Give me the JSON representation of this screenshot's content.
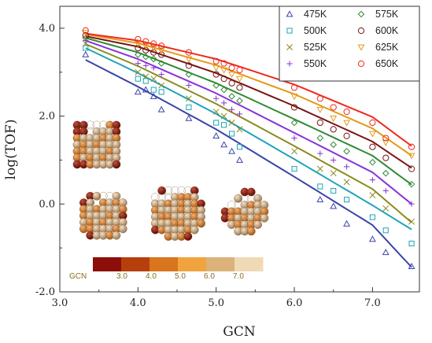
{
  "chart_data": {
    "type": "scatter",
    "xlabel": "GCN",
    "ylabel": "log(TOF)",
    "xlim": [
      3.0,
      7.6
    ],
    "ylim": [
      -2.0,
      4.5
    ],
    "xticks": [
      "3.0",
      "4.0",
      "5.0",
      "6.0",
      "7.0"
    ],
    "yticks": [
      "-2.0",
      "0.0",
      "2.0",
      "4.0"
    ],
    "grid": false,
    "legend_position": "top-right",
    "series": [
      {
        "name": "475K",
        "marker": "triangle",
        "color": "#3a44a8",
        "points": [
          [
            3.33,
            3.4
          ],
          [
            4.0,
            2.55
          ],
          [
            4.1,
            2.6
          ],
          [
            4.2,
            2.45
          ],
          [
            4.3,
            2.15
          ],
          [
            4.65,
            1.95
          ],
          [
            5.0,
            1.55
          ],
          [
            5.1,
            1.35
          ],
          [
            5.2,
            1.2
          ],
          [
            5.3,
            1.0
          ],
          [
            6.33,
            0.1
          ],
          [
            6.5,
            -0.05
          ],
          [
            6.67,
            -0.45
          ],
          [
            7.0,
            -0.8
          ],
          [
            7.17,
            -1.1
          ],
          [
            7.5,
            -1.42
          ]
        ],
        "line": [
          [
            3.33,
            3.28
          ],
          [
            4.0,
            2.67
          ],
          [
            5.0,
            1.7
          ],
          [
            6.0,
            0.62
          ],
          [
            7.0,
            -0.48
          ],
          [
            7.5,
            -1.44
          ]
        ]
      },
      {
        "name": "500K",
        "marker": "square",
        "color": "#1fa3b8",
        "points": [
          [
            3.33,
            3.55
          ],
          [
            4.0,
            2.85
          ],
          [
            4.1,
            2.8
          ],
          [
            4.2,
            2.6
          ],
          [
            4.3,
            2.55
          ],
          [
            4.65,
            2.2
          ],
          [
            5.0,
            1.85
          ],
          [
            5.1,
            1.8
          ],
          [
            5.2,
            1.6
          ],
          [
            5.3,
            1.3
          ],
          [
            6.0,
            0.8
          ],
          [
            6.33,
            0.4
          ],
          [
            6.5,
            0.3
          ],
          [
            6.67,
            0.1
          ],
          [
            7.0,
            -0.3
          ],
          [
            7.17,
            -0.6
          ],
          [
            7.5,
            -0.9
          ]
        ],
        "line": [
          [
            3.33,
            3.55
          ],
          [
            4.0,
            2.98
          ],
          [
            5.0,
            2.05
          ],
          [
            6.0,
            1.02
          ],
          [
            7.0,
            -0.03
          ],
          [
            7.5,
            -0.58
          ]
        ]
      },
      {
        "name": "525K",
        "marker": "x",
        "color": "#8a8a1e",
        "points": [
          [
            3.33,
            3.65
          ],
          [
            4.0,
            3.0
          ],
          [
            4.1,
            2.9
          ],
          [
            4.2,
            2.85
          ],
          [
            4.3,
            2.7
          ],
          [
            4.65,
            2.4
          ],
          [
            5.0,
            2.1
          ],
          [
            5.1,
            2.0
          ],
          [
            5.2,
            1.85
          ],
          [
            5.3,
            1.7
          ],
          [
            6.0,
            1.2
          ],
          [
            6.33,
            0.8
          ],
          [
            6.5,
            0.7
          ],
          [
            6.67,
            0.5
          ],
          [
            7.0,
            0.2
          ],
          [
            7.17,
            -0.1
          ],
          [
            7.5,
            -0.4
          ]
        ],
        "line": [
          [
            3.33,
            3.64
          ],
          [
            4.0,
            3.14
          ],
          [
            5.0,
            2.28
          ],
          [
            6.0,
            1.32
          ],
          [
            7.0,
            0.34
          ],
          [
            7.5,
            -0.42
          ]
        ]
      },
      {
        "name": "550K",
        "marker": "plus",
        "color": "#8a32d8",
        "points": [
          [
            3.33,
            3.72
          ],
          [
            4.0,
            3.2
          ],
          [
            4.1,
            3.15
          ],
          [
            4.2,
            3.1
          ],
          [
            4.3,
            2.95
          ],
          [
            4.65,
            2.7
          ],
          [
            5.0,
            2.4
          ],
          [
            5.1,
            2.3
          ],
          [
            5.2,
            2.15
          ],
          [
            5.3,
            2.05
          ],
          [
            6.0,
            1.5
          ],
          [
            6.33,
            1.15
          ],
          [
            6.5,
            1.0
          ],
          [
            6.67,
            0.85
          ],
          [
            7.0,
            0.55
          ],
          [
            7.17,
            0.3
          ],
          [
            7.5,
            0.0
          ]
        ],
        "line": [
          [
            3.33,
            3.72
          ],
          [
            4.0,
            3.3
          ],
          [
            5.0,
            2.52
          ],
          [
            6.0,
            1.62
          ],
          [
            7.0,
            0.72
          ],
          [
            7.5,
            0.0
          ]
        ]
      },
      {
        "name": "575K",
        "marker": "diamond",
        "color": "#2e8a32",
        "points": [
          [
            3.33,
            3.78
          ],
          [
            4.0,
            3.4
          ],
          [
            4.1,
            3.35
          ],
          [
            4.2,
            3.3
          ],
          [
            4.3,
            3.2
          ],
          [
            4.65,
            2.95
          ],
          [
            5.0,
            2.7
          ],
          [
            5.1,
            2.6
          ],
          [
            5.2,
            2.45
          ],
          [
            5.3,
            2.35
          ],
          [
            6.0,
            1.85
          ],
          [
            6.33,
            1.5
          ],
          [
            6.5,
            1.35
          ],
          [
            6.67,
            1.2
          ],
          [
            7.0,
            0.95
          ],
          [
            7.17,
            0.7
          ],
          [
            7.5,
            0.45
          ]
        ],
        "line": [
          [
            3.33,
            3.78
          ],
          [
            4.0,
            3.45
          ],
          [
            5.0,
            2.75
          ],
          [
            6.0,
            1.93
          ],
          [
            7.0,
            1.1
          ],
          [
            7.5,
            0.44
          ]
        ]
      },
      {
        "name": "600K",
        "marker": "circle",
        "color": "#7a1414",
        "points": [
          [
            3.33,
            3.84
          ],
          [
            4.0,
            3.55
          ],
          [
            4.1,
            3.5
          ],
          [
            4.2,
            3.45
          ],
          [
            4.3,
            3.4
          ],
          [
            4.65,
            3.15
          ],
          [
            5.0,
            2.95
          ],
          [
            5.1,
            2.85
          ],
          [
            5.2,
            2.75
          ],
          [
            5.3,
            2.65
          ],
          [
            6.0,
            2.2
          ],
          [
            6.33,
            1.85
          ],
          [
            6.5,
            1.7
          ],
          [
            6.67,
            1.55
          ],
          [
            7.0,
            1.3
          ],
          [
            7.17,
            1.05
          ],
          [
            7.5,
            0.8
          ]
        ],
        "line": [
          [
            3.33,
            3.82
          ],
          [
            4.0,
            3.58
          ],
          [
            5.0,
            2.98
          ],
          [
            6.0,
            2.23
          ],
          [
            7.0,
            1.42
          ],
          [
            7.5,
            0.82
          ]
        ]
      },
      {
        "name": "625K",
        "marker": "triangle-down",
        "color": "#e39a1a",
        "points": [
          [
            3.33,
            3.9
          ],
          [
            4.0,
            3.65
          ],
          [
            4.1,
            3.6
          ],
          [
            4.2,
            3.55
          ],
          [
            4.3,
            3.5
          ],
          [
            4.65,
            3.3
          ],
          [
            5.0,
            3.1
          ],
          [
            5.1,
            3.05
          ],
          [
            5.2,
            2.95
          ],
          [
            5.3,
            2.85
          ],
          [
            6.0,
            2.45
          ],
          [
            6.33,
            2.15
          ],
          [
            6.5,
            1.95
          ],
          [
            6.67,
            1.85
          ],
          [
            7.0,
            1.6
          ],
          [
            7.17,
            1.4
          ],
          [
            7.5,
            1.1
          ]
        ],
        "line": [
          [
            3.33,
            3.86
          ],
          [
            4.0,
            3.66
          ],
          [
            5.0,
            3.16
          ],
          [
            6.0,
            2.5
          ],
          [
            7.0,
            1.72
          ],
          [
            7.5,
            1.1
          ]
        ]
      },
      {
        "name": "650K",
        "marker": "circle",
        "color": "#ee2a1e",
        "points": [
          [
            3.33,
            3.95
          ],
          [
            4.0,
            3.75
          ],
          [
            4.1,
            3.7
          ],
          [
            4.2,
            3.65
          ],
          [
            4.3,
            3.6
          ],
          [
            4.65,
            3.45
          ],
          [
            5.0,
            3.25
          ],
          [
            5.1,
            3.2
          ],
          [
            5.2,
            3.1
          ],
          [
            5.3,
            3.05
          ],
          [
            6.0,
            2.65
          ],
          [
            6.33,
            2.4
          ],
          [
            6.5,
            2.2
          ],
          [
            6.67,
            2.1
          ],
          [
            7.0,
            1.85
          ],
          [
            7.17,
            1.5
          ],
          [
            7.5,
            1.3
          ]
        ],
        "line": [
          [
            3.33,
            3.88
          ],
          [
            4.0,
            3.72
          ],
          [
            5.0,
            3.3
          ],
          [
            6.0,
            2.72
          ],
          [
            7.0,
            1.98
          ],
          [
            7.5,
            1.32
          ]
        ]
      }
    ],
    "colorbar": {
      "label": "GCN",
      "ticks": [
        "3.0",
        "4.0",
        "5.0",
        "6.0",
        "7.0"
      ],
      "colors": [
        "#8b0f08",
        "#b5400c",
        "#d9751d",
        "#f1a33d",
        "#dcb27a",
        "#f0d9b5"
      ]
    },
    "inset_images": [
      "nanoparticle-cube",
      "nanoparticle-rounded",
      "nanoparticle-sphere",
      "nanoparticle-octahedron"
    ]
  }
}
